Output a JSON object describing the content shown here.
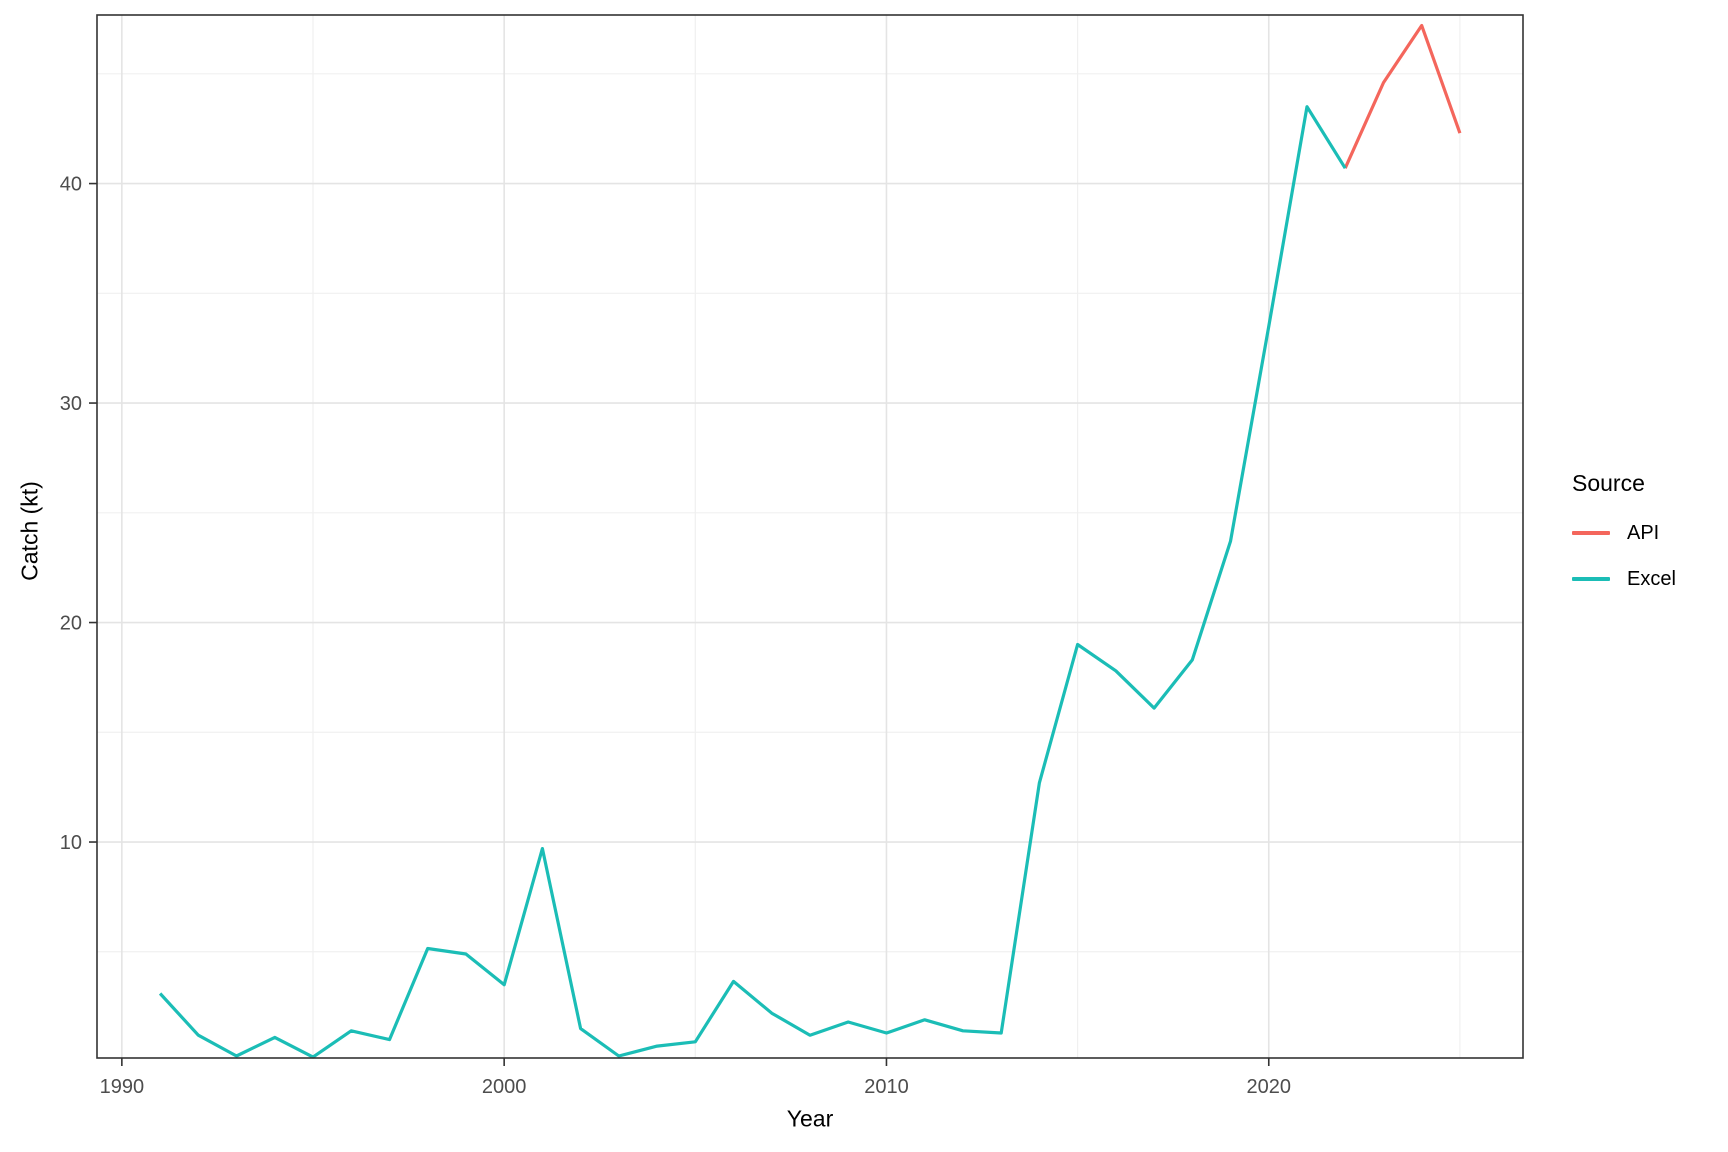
{
  "chart_data": {
    "type": "line",
    "xlabel": "Year",
    "ylabel": "Catch (kt)",
    "legend_title": "Source",
    "legend_position": "right",
    "grid": true,
    "xlim": [
      1989.35,
      2026.65
    ],
    "ylim": [
      0.16,
      47.68
    ],
    "x_ticks": [
      1990,
      2000,
      2010,
      2020
    ],
    "x_minor_ticks": [
      1995,
      2005,
      2015,
      2025
    ],
    "y_ticks": [
      10,
      20,
      30,
      40
    ],
    "y_minor_ticks": [
      5,
      15,
      25,
      35,
      45
    ],
    "series": [
      {
        "name": "API",
        "color": "#f4665c",
        "x": [
          2022,
          2023,
          2024,
          2025
        ],
        "values": [
          40.7,
          44.6,
          47.2,
          42.3
        ]
      },
      {
        "name": "Excel",
        "color": "#1bbdb6",
        "x": [
          1991,
          1992,
          1993,
          1994,
          1995,
          1996,
          1997,
          1998,
          1999,
          2000,
          2001,
          2002,
          2003,
          2004,
          2005,
          2006,
          2007,
          2008,
          2009,
          2010,
          2011,
          2012,
          2013,
          2014,
          2015,
          2016,
          2017,
          2018,
          2019,
          2020,
          2021,
          2022
        ],
        "values": [
          3.1,
          1.2,
          0.25,
          1.1,
          0.2,
          1.4,
          1.0,
          5.15,
          4.9,
          3.5,
          9.7,
          1.5,
          0.25,
          0.7,
          0.9,
          3.65,
          2.2,
          1.2,
          1.8,
          1.3,
          1.9,
          1.4,
          1.3,
          12.7,
          19.0,
          17.8,
          16.1,
          18.3,
          23.7,
          33.5,
          43.5,
          40.7
        ]
      }
    ]
  },
  "colors": {
    "panel_border": "#333333",
    "grid_major": "#e4e4e4",
    "grid_minor": "#f0f0f0",
    "tick_mark": "#333333",
    "tick_text": "#4d4d4d"
  }
}
